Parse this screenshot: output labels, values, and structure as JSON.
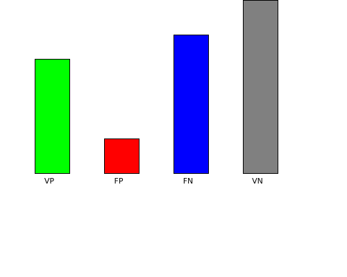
{
  "chart_data": {
    "type": "bar",
    "title": "",
    "xlabel": "",
    "ylabel": "",
    "categories": [
      "VP",
      "FP",
      "FN",
      "VN"
    ],
    "values": [
      33,
      10,
      40,
      50
    ],
    "colors": [
      "#00ff00",
      "#ff0000",
      "#0000ff",
      "#808080"
    ],
    "ylim": [
      0,
      50
    ],
    "grid": false,
    "legend": "none"
  }
}
